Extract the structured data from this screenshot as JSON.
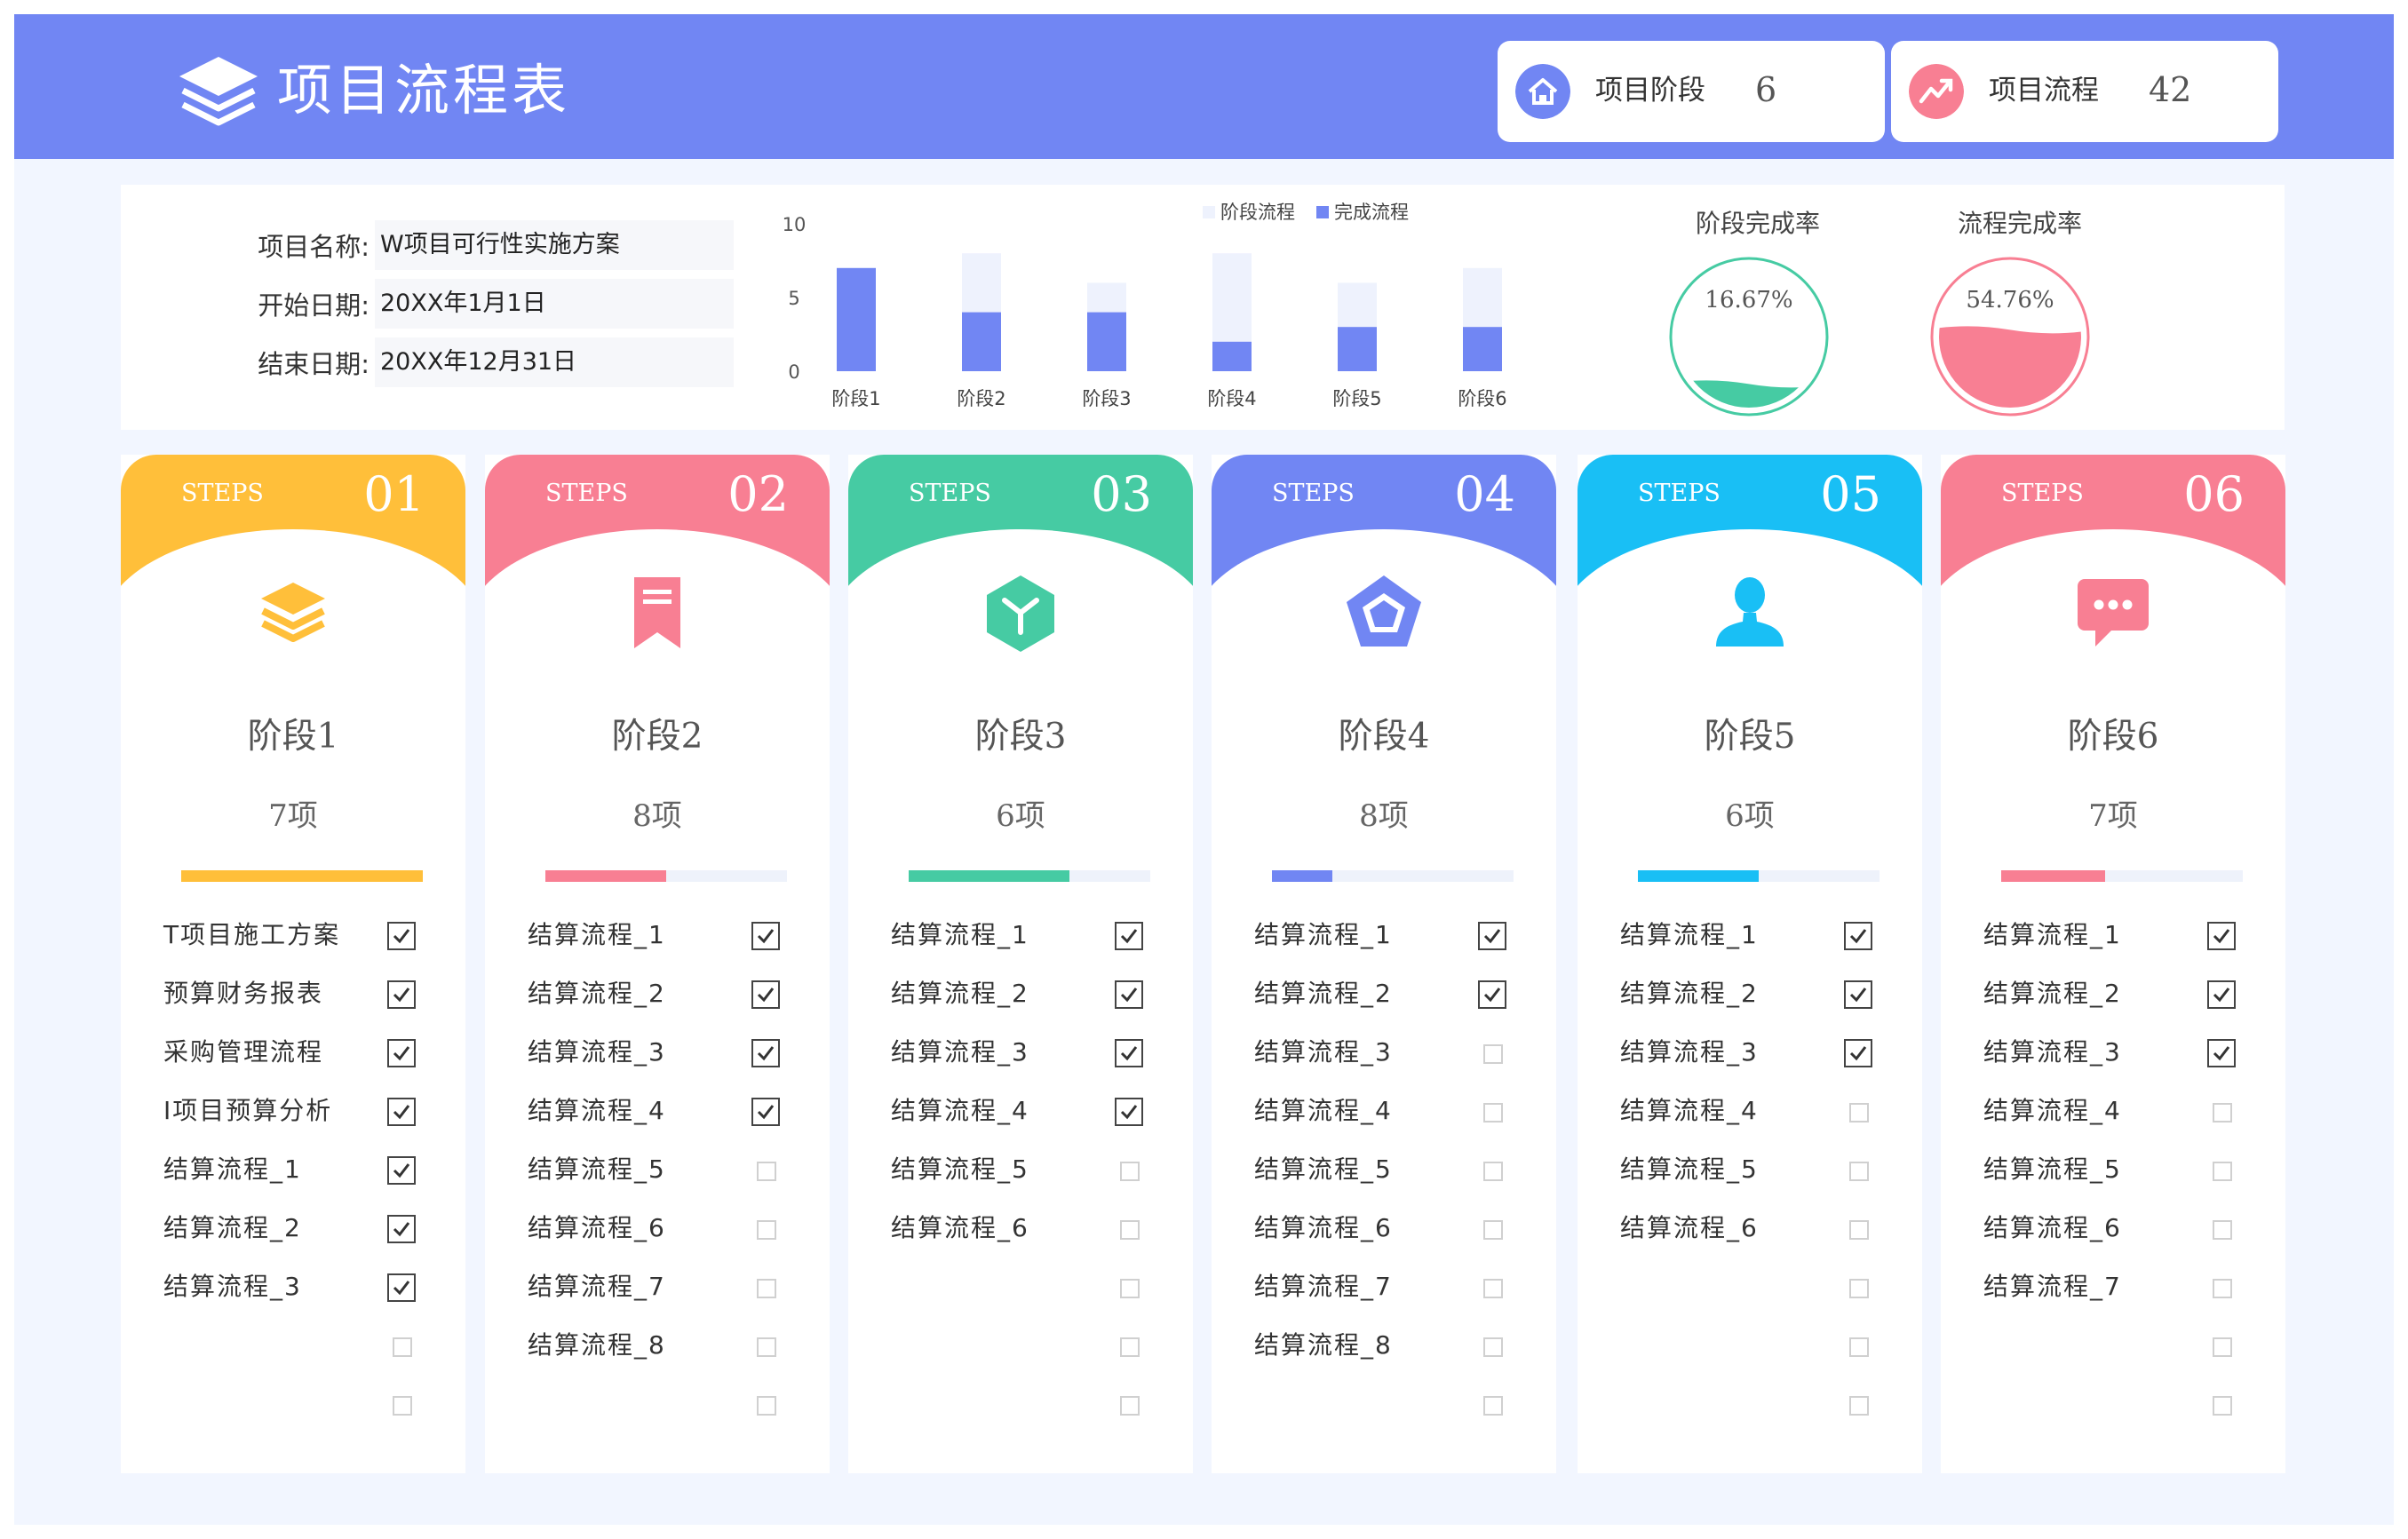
{
  "header": {
    "title": "项目流程表",
    "logo_icon": "layers-icon",
    "stats": [
      {
        "label": "项目阶段",
        "value": "6",
        "icon": "home-icon",
        "color": "#7186f3"
      },
      {
        "label": "项目流程",
        "value": "42",
        "icon": "trend-up-icon",
        "color": "#f87f93"
      }
    ]
  },
  "info": {
    "name_label": "项目名称:",
    "name_value": "W项目可行性实施方案",
    "start_label": "开始日期:",
    "start_value": "20XX年1月1日",
    "end_label": "结束日期:",
    "end_value": "20XX年12月31日"
  },
  "chart_data": {
    "type": "bar",
    "categories": [
      "阶段1",
      "阶段2",
      "阶段3",
      "阶段4",
      "阶段5",
      "阶段6"
    ],
    "series": [
      {
        "name": "阶段流程",
        "values": [
          7,
          8,
          6,
          8,
          6,
          7
        ],
        "color": "#eef2fd"
      },
      {
        "name": "完成流程",
        "values": [
          7,
          4,
          4,
          2,
          3,
          3
        ],
        "color": "#7186f3"
      }
    ],
    "ylim": [
      0,
      10
    ],
    "yticks": [
      "10",
      "5",
      "0"
    ],
    "legend": "top-center",
    "grid": false
  },
  "rates": [
    {
      "title": "阶段完成率",
      "value": "16.67%",
      "fraction": 0.1667,
      "color": "#46cba3"
    },
    {
      "title": "流程完成率",
      "value": "54.76%",
      "fraction": 0.5476,
      "color": "#f87f93"
    }
  ],
  "steps": [
    {
      "word": "STEPS",
      "num": "01",
      "name": "阶段1",
      "count": "7项",
      "color": "#ffbf3a",
      "icon": "layers-icon",
      "total": 7,
      "done": 7,
      "tasks": [
        {
          "label": "T项目施工方案",
          "checked": true
        },
        {
          "label": "预算财务报表",
          "checked": true
        },
        {
          "label": "采购管理流程",
          "checked": true
        },
        {
          "label": "I项目预算分析",
          "checked": true
        },
        {
          "label": "结算流程_1",
          "checked": true
        },
        {
          "label": "结算流程_2",
          "checked": true
        },
        {
          "label": "结算流程_3",
          "checked": true
        },
        {
          "label": "",
          "checked": false
        },
        {
          "label": "",
          "checked": false
        }
      ]
    },
    {
      "word": "STEPS",
      "num": "02",
      "name": "阶段2",
      "count": "8项",
      "color": "#f87f93",
      "icon": "bookmark-icon",
      "total": 8,
      "done": 4,
      "tasks": [
        {
          "label": "结算流程_1",
          "checked": true
        },
        {
          "label": "结算流程_2",
          "checked": true
        },
        {
          "label": "结算流程_3",
          "checked": true
        },
        {
          "label": "结算流程_4",
          "checked": true
        },
        {
          "label": "结算流程_5",
          "checked": false
        },
        {
          "label": "结算流程_6",
          "checked": false
        },
        {
          "label": "结算流程_7",
          "checked": false
        },
        {
          "label": "结算流程_8",
          "checked": false
        },
        {
          "label": "",
          "checked": false
        }
      ]
    },
    {
      "word": "STEPS",
      "num": "03",
      "name": "阶段3",
      "count": "6项",
      "color": "#46cba3",
      "icon": "cube-icon",
      "total": 6,
      "done": 4,
      "tasks": [
        {
          "label": "结算流程_1",
          "checked": true
        },
        {
          "label": "结算流程_2",
          "checked": true
        },
        {
          "label": "结算流程_3",
          "checked": true
        },
        {
          "label": "结算流程_4",
          "checked": true
        },
        {
          "label": "结算流程_5",
          "checked": false
        },
        {
          "label": "结算流程_6",
          "checked": false
        },
        {
          "label": "",
          "checked": false
        },
        {
          "label": "",
          "checked": false
        },
        {
          "label": "",
          "checked": false
        }
      ]
    },
    {
      "word": "STEPS",
      "num": "04",
      "name": "阶段4",
      "count": "8项",
      "color": "#7186f3",
      "icon": "pentagon-icon",
      "total": 8,
      "done": 2,
      "tasks": [
        {
          "label": "结算流程_1",
          "checked": true
        },
        {
          "label": "结算流程_2",
          "checked": true
        },
        {
          "label": "结算流程_3",
          "checked": false
        },
        {
          "label": "结算流程_4",
          "checked": false
        },
        {
          "label": "结算流程_5",
          "checked": false
        },
        {
          "label": "结算流程_6",
          "checked": false
        },
        {
          "label": "结算流程_7",
          "checked": false
        },
        {
          "label": "结算流程_8",
          "checked": false
        },
        {
          "label": "",
          "checked": false
        }
      ]
    },
    {
      "word": "STEPS",
      "num": "05",
      "name": "阶段5",
      "count": "6项",
      "color": "#19bff5",
      "icon": "user-icon",
      "total": 6,
      "done": 3,
      "tasks": [
        {
          "label": "结算流程_1",
          "checked": true
        },
        {
          "label": "结算流程_2",
          "checked": true
        },
        {
          "label": "结算流程_3",
          "checked": true
        },
        {
          "label": "结算流程_4",
          "checked": false
        },
        {
          "label": "结算流程_5",
          "checked": false
        },
        {
          "label": "结算流程_6",
          "checked": false
        },
        {
          "label": "",
          "checked": false
        },
        {
          "label": "",
          "checked": false
        },
        {
          "label": "",
          "checked": false
        }
      ]
    },
    {
      "word": "STEPS",
      "num": "06",
      "name": "阶段6",
      "count": "7项",
      "color": "#f87f93",
      "icon": "chat-icon",
      "total": 7,
      "done": 3,
      "tasks": [
        {
          "label": "结算流程_1",
          "checked": true
        },
        {
          "label": "结算流程_2",
          "checked": true
        },
        {
          "label": "结算流程_3",
          "checked": true
        },
        {
          "label": "结算流程_4",
          "checked": false
        },
        {
          "label": "结算流程_5",
          "checked": false
        },
        {
          "label": "结算流程_6",
          "checked": false
        },
        {
          "label": "结算流程_7",
          "checked": false
        },
        {
          "label": "",
          "checked": false
        },
        {
          "label": "",
          "checked": false
        }
      ]
    }
  ]
}
